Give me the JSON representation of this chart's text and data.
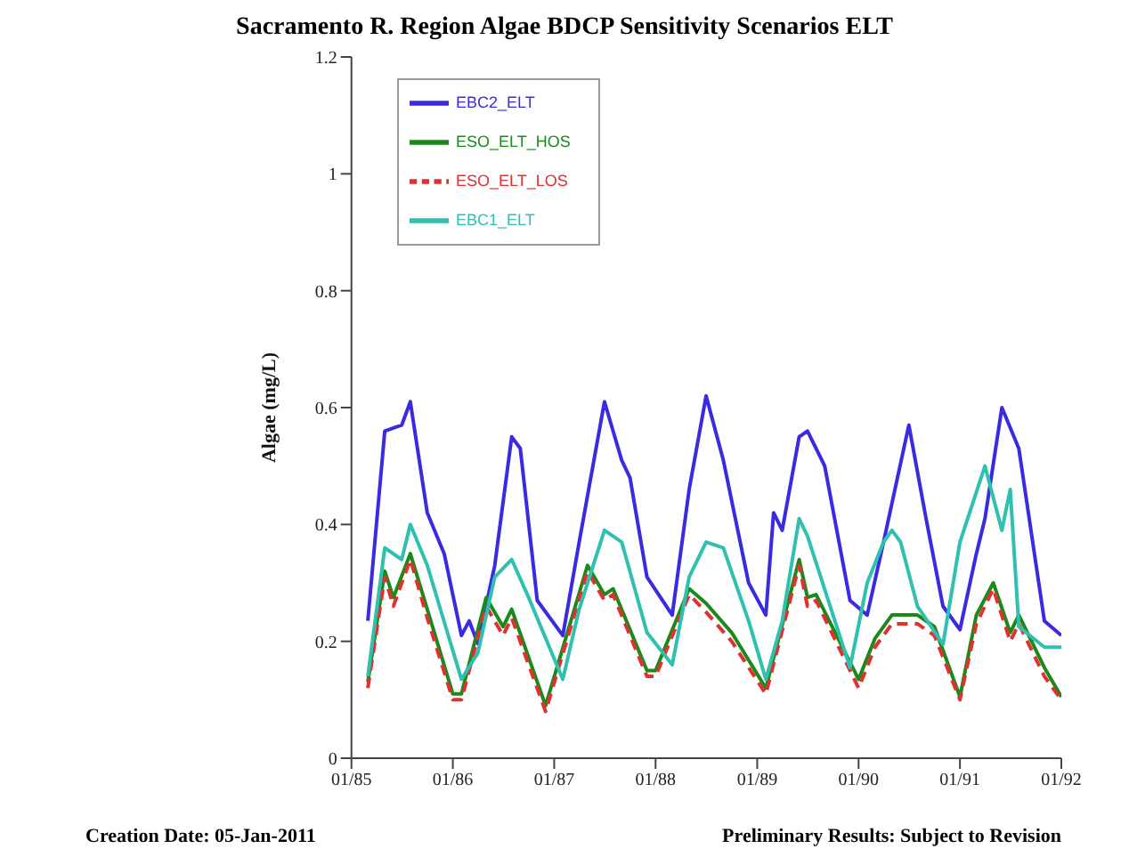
{
  "chart_data": {
    "type": "line",
    "title": "Sacramento R. Region Algae BDCP Sensitivity Scenarios ELT",
    "ylabel": "Algae (mg/L)",
    "annotations": [
      "Creation Date:  05-Jan-2011",
      "Preliminary Results: Subject to Revision"
    ],
    "xlim": [
      "1985-01",
      "1992-01"
    ],
    "xticks": [
      {
        "value": "1985-01",
        "label": "01/85"
      },
      {
        "value": "1986-01",
        "label": "01/86"
      },
      {
        "value": "1987-01",
        "label": "01/87"
      },
      {
        "value": "1988-01",
        "label": "01/88"
      },
      {
        "value": "1989-01",
        "label": "01/89"
      },
      {
        "value": "1990-01",
        "label": "01/90"
      },
      {
        "value": "1991-01",
        "label": "01/91"
      },
      {
        "value": "1992-01",
        "label": "01/92"
      }
    ],
    "ylim": [
      0,
      1.2
    ],
    "yticks": [
      0,
      0.2,
      0.4,
      0.6,
      0.8,
      1,
      1.2
    ],
    "legend": "top left",
    "series": [
      {
        "name": "EBC2_ELT",
        "color": "#3a2be0",
        "x": [
          "1985-03",
          "1985-05",
          "1985-07",
          "1985-08",
          "1985-10",
          "1985-12",
          "1986-02",
          "1986-03",
          "1986-04",
          "1986-06",
          "1986-08",
          "1986-09",
          "1986-11",
          "1987-02",
          "1987-04",
          "1987-07",
          "1987-09",
          "1987-10",
          "1987-12",
          "1988-03",
          "1988-05",
          "1988-07",
          "1988-09",
          "1988-12",
          "1989-02",
          "1989-03",
          "1989-04",
          "1989-06",
          "1989-07",
          "1989-09",
          "1989-12",
          "1990-02",
          "1990-04",
          "1990-07",
          "1990-09",
          "1990-11",
          "1991-01",
          "1991-03",
          "1991-04",
          "1991-06",
          "1991-08",
          "1991-11",
          "1992-01"
        ],
        "values": [
          0.235,
          0.56,
          0.57,
          0.61,
          0.42,
          0.35,
          0.21,
          0.235,
          0.196,
          0.33,
          0.55,
          0.53,
          0.27,
          0.21,
          0.37,
          0.61,
          0.51,
          0.48,
          0.31,
          0.245,
          0.46,
          0.62,
          0.51,
          0.3,
          0.245,
          0.42,
          0.39,
          0.55,
          0.56,
          0.5,
          0.27,
          0.245,
          0.37,
          0.57,
          0.41,
          0.26,
          0.22,
          0.35,
          0.41,
          0.6,
          0.53,
          0.235,
          0.21
        ]
      },
      {
        "name": "ESO_ELT_HOS",
        "color": "#1a8a1a",
        "x": [
          "1985-03",
          "1985-05",
          "1985-06",
          "1985-08",
          "1985-10",
          "1986-01",
          "1986-02",
          "1986-05",
          "1986-07",
          "1986-08",
          "1986-12",
          "1987-05",
          "1987-07",
          "1987-08",
          "1987-12",
          "1988-01",
          "1988-05",
          "1988-07",
          "1988-10",
          "1989-02",
          "1989-06",
          "1989-07",
          "1989-08",
          "1990-01",
          "1990-03",
          "1990-05",
          "1990-08",
          "1990-10",
          "1991-01",
          "1991-03",
          "1991-05",
          "1991-07",
          "1991-08",
          "1991-11",
          "1992-01"
        ],
        "values": [
          0.13,
          0.32,
          0.275,
          0.35,
          0.255,
          0.11,
          0.11,
          0.275,
          0.225,
          0.255,
          0.09,
          0.33,
          0.28,
          0.29,
          0.15,
          0.15,
          0.29,
          0.265,
          0.215,
          0.12,
          0.34,
          0.275,
          0.28,
          0.135,
          0.205,
          0.245,
          0.245,
          0.225,
          0.105,
          0.245,
          0.3,
          0.215,
          0.245,
          0.155,
          0.105
        ]
      },
      {
        "name": "ESO_ELT_LOS",
        "color": "#e03030",
        "line_style": "dashed",
        "x": [
          "1985-03",
          "1985-05",
          "1985-06",
          "1985-08",
          "1985-10",
          "1986-01",
          "1986-02",
          "1986-05",
          "1986-07",
          "1986-08",
          "1986-12",
          "1987-05",
          "1987-07",
          "1987-08",
          "1987-12",
          "1988-01",
          "1988-05",
          "1988-07",
          "1988-10",
          "1989-02",
          "1989-06",
          "1989-07",
          "1989-08",
          "1990-01",
          "1990-03",
          "1990-05",
          "1990-08",
          "1990-10",
          "1991-01",
          "1991-03",
          "1991-05",
          "1991-07",
          "1991-08",
          "1991-11",
          "1992-01"
        ],
        "values": [
          0.12,
          0.31,
          0.26,
          0.34,
          0.24,
          0.1,
          0.1,
          0.26,
          0.21,
          0.24,
          0.08,
          0.32,
          0.27,
          0.28,
          0.14,
          0.14,
          0.28,
          0.25,
          0.2,
          0.11,
          0.33,
          0.26,
          0.27,
          0.12,
          0.19,
          0.23,
          0.23,
          0.21,
          0.1,
          0.23,
          0.29,
          0.2,
          0.23,
          0.14,
          0.1
        ]
      },
      {
        "name": "EBC1_ELT",
        "color": "#30c0b0",
        "x": [
          "1985-03",
          "1985-05",
          "1985-07",
          "1985-08",
          "1985-10",
          "1986-02",
          "1986-04",
          "1986-06",
          "1986-08",
          "1986-10",
          "1987-02",
          "1987-04",
          "1987-07",
          "1987-09",
          "1987-12",
          "1988-03",
          "1988-05",
          "1988-07",
          "1988-09",
          "1988-12",
          "1989-02",
          "1989-04",
          "1989-06",
          "1989-07",
          "1989-12",
          "1990-02",
          "1990-04",
          "1990-05",
          "1990-06",
          "1990-08",
          "1990-11",
          "1991-01",
          "1991-04",
          "1991-06",
          "1991-07",
          "1991-08",
          "1991-11",
          "1992-01"
        ],
        "values": [
          0.14,
          0.36,
          0.34,
          0.4,
          0.33,
          0.135,
          0.18,
          0.31,
          0.34,
          0.275,
          0.135,
          0.255,
          0.39,
          0.37,
          0.215,
          0.16,
          0.31,
          0.37,
          0.36,
          0.235,
          0.135,
          0.235,
          0.41,
          0.38,
          0.155,
          0.3,
          0.37,
          0.39,
          0.37,
          0.26,
          0.195,
          0.37,
          0.5,
          0.39,
          0.46,
          0.225,
          0.19,
          0.19
        ]
      }
    ]
  }
}
